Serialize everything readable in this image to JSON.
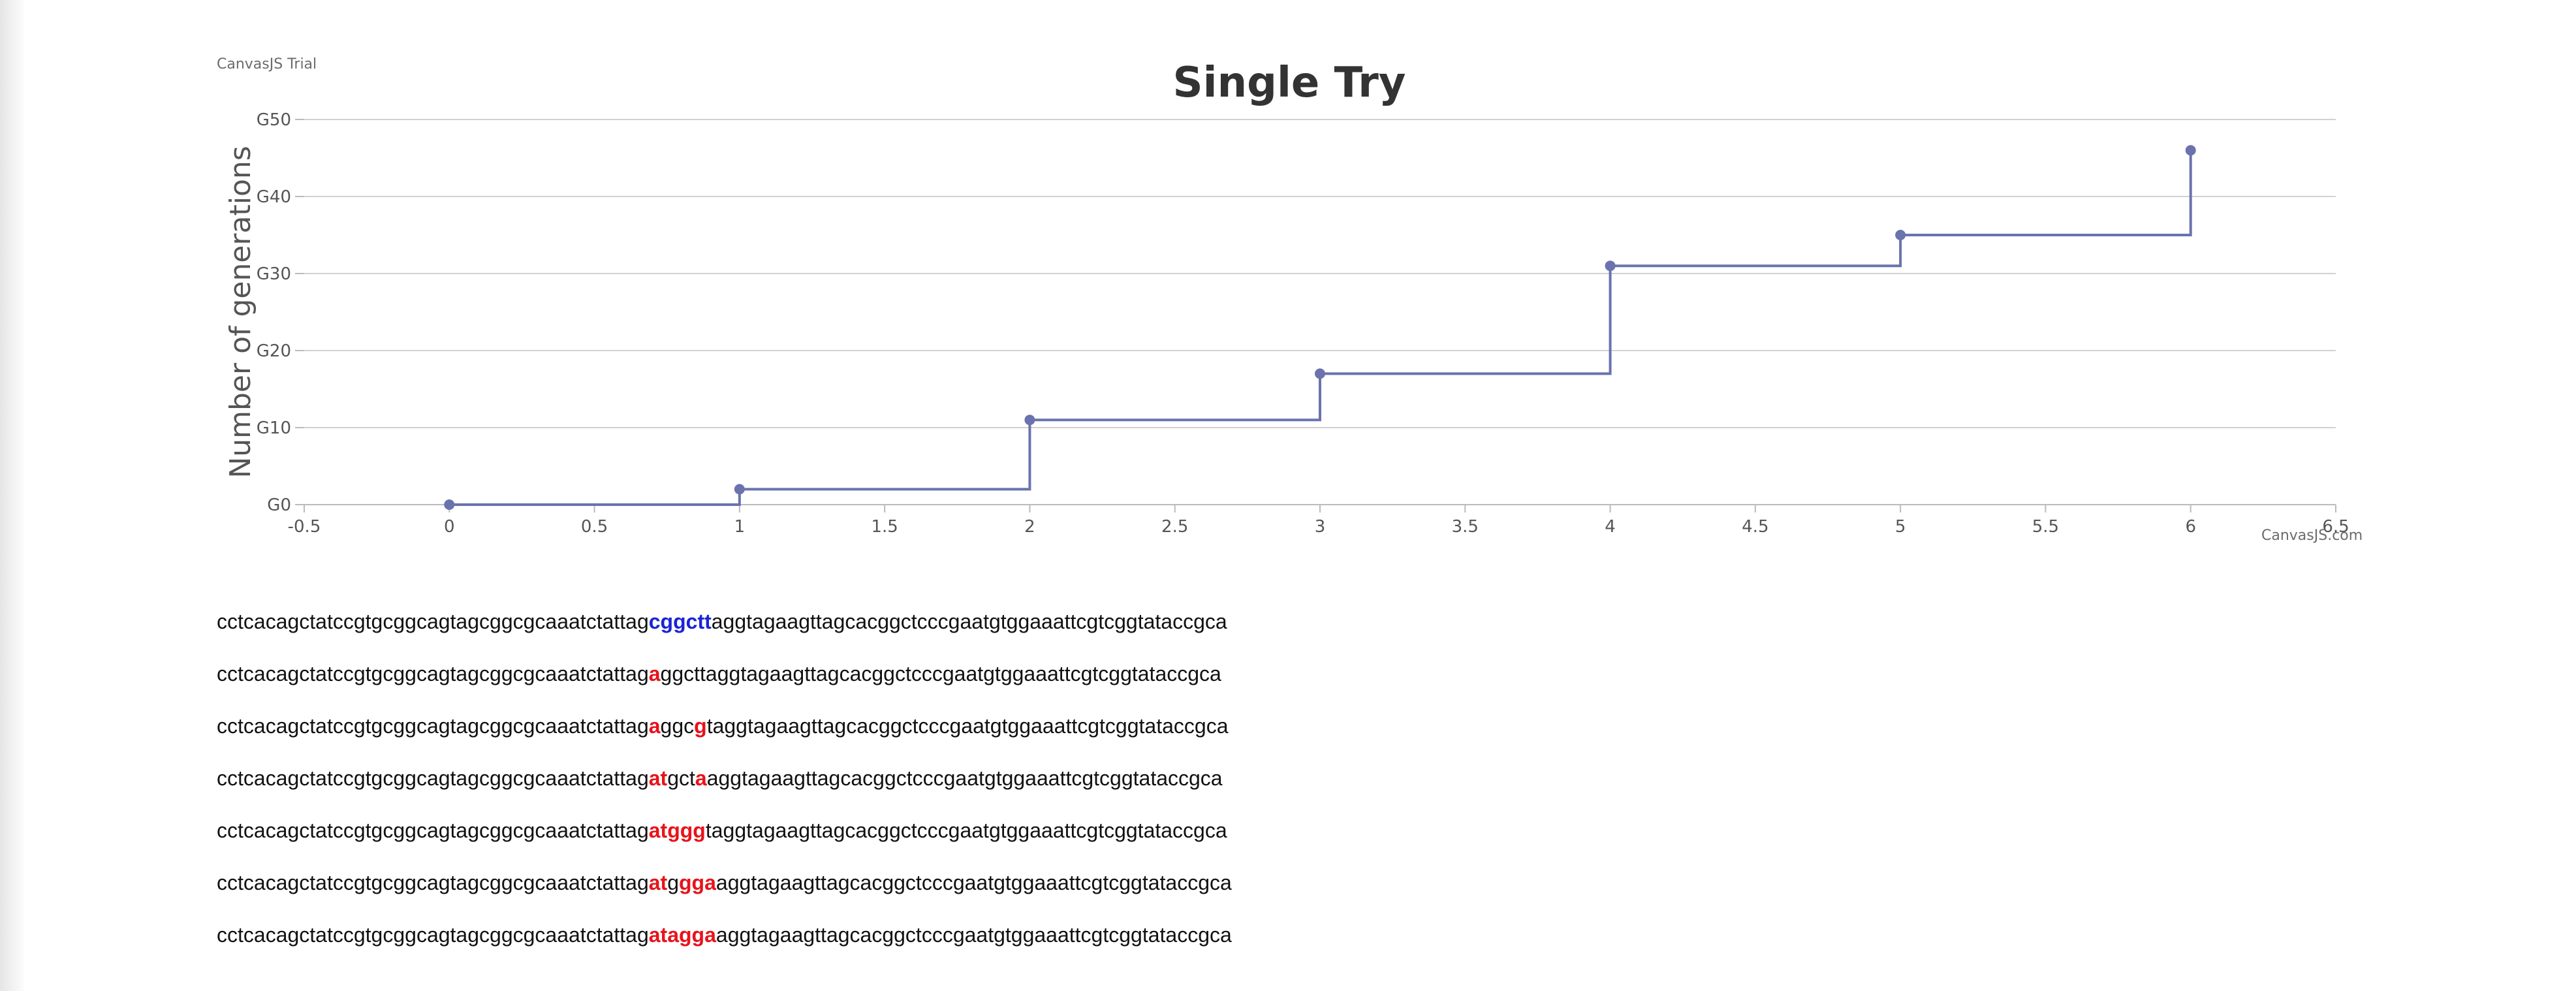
{
  "credits": {
    "trial": "CanvasJS Trial",
    "link": "CanvasJS.com"
  },
  "chart_data": {
    "type": "line",
    "title": "Single Try",
    "xlabel": "",
    "ylabel": "Number of generations",
    "xlim": [
      -0.5,
      6.5
    ],
    "ylim": [
      0,
      50
    ],
    "x_ticks": [
      "-0.5",
      "0",
      "0.5",
      "1",
      "1.5",
      "2",
      "2.5",
      "3",
      "3.5",
      "4",
      "4.5",
      "5",
      "5.5",
      "6",
      "6.5"
    ],
    "y_ticks": [
      "G0",
      "G10",
      "G20",
      "G30",
      "G40",
      "G50"
    ],
    "grid": true,
    "step": true,
    "line_color": "#6a73ad",
    "series": [
      {
        "x": [
          0,
          1,
          2,
          3,
          4,
          5,
          6
        ],
        "values": [
          0,
          2,
          11,
          17,
          31,
          35,
          46
        ]
      }
    ]
  },
  "sequences": [
    [
      {
        "t": "cctcacagctatccgtgcggcagtagcggcgcaaatctattag",
        "s": "plain"
      },
      {
        "t": "cggctt",
        "s": "hl"
      },
      {
        "t": "aggtagaagttagcacggctcccgaatgtggaaattcgtcggtataccgca",
        "s": "plain"
      }
    ],
    [
      {
        "t": "cctcacagctatccgtgcggcagtagcggcgcaaatctattag",
        "s": "plain"
      },
      {
        "t": "a",
        "s": "mut"
      },
      {
        "t": "ggcttaggtagaagttagcacggctcccgaatgtggaaattcgtcggtataccgca",
        "s": "plain"
      }
    ],
    [
      {
        "t": "cctcacagctatccgtgcggcagtagcggcgcaaatctattag",
        "s": "plain"
      },
      {
        "t": "a",
        "s": "mut"
      },
      {
        "t": "ggc",
        "s": "plain"
      },
      {
        "t": "g",
        "s": "mut"
      },
      {
        "t": "taggtagaagttagcacggctcccgaatgtggaaattcgtcggtataccgca",
        "s": "plain"
      }
    ],
    [
      {
        "t": "cctcacagctatccgtgcggcagtagcggcgcaaatctattag",
        "s": "plain"
      },
      {
        "t": "at",
        "s": "mut"
      },
      {
        "t": "gct",
        "s": "plain"
      },
      {
        "t": "a",
        "s": "mut"
      },
      {
        "t": "aggtagaagttagcacggctcccgaatgtggaaattcgtcggtataccgca",
        "s": "plain"
      }
    ],
    [
      {
        "t": "cctcacagctatccgtgcggcagtagcggcgcaaatctattag",
        "s": "plain"
      },
      {
        "t": "atggg",
        "s": "mut"
      },
      {
        "t": "taggtagaagttagcacggctcccgaatgtggaaattcgtcggtataccgca",
        "s": "plain"
      }
    ],
    [
      {
        "t": "cctcacagctatccgtgcggcagtagcggcgcaaatctattag",
        "s": "plain"
      },
      {
        "t": "at",
        "s": "mut"
      },
      {
        "t": "g",
        "s": "plain"
      },
      {
        "t": "gga",
        "s": "mut"
      },
      {
        "t": "aggtagaagttagcacggctcccgaatgtggaaattcgtcggtataccgca",
        "s": "plain"
      }
    ],
    [
      {
        "t": "cctcacagctatccgtgcggcagtagcggcgcaaatctattag",
        "s": "plain"
      },
      {
        "t": "atagga",
        "s": "mut"
      },
      {
        "t": "aggtagaagttagcacggctcccgaatgtggaaattcgtcggtataccgca",
        "s": "plain"
      }
    ]
  ]
}
